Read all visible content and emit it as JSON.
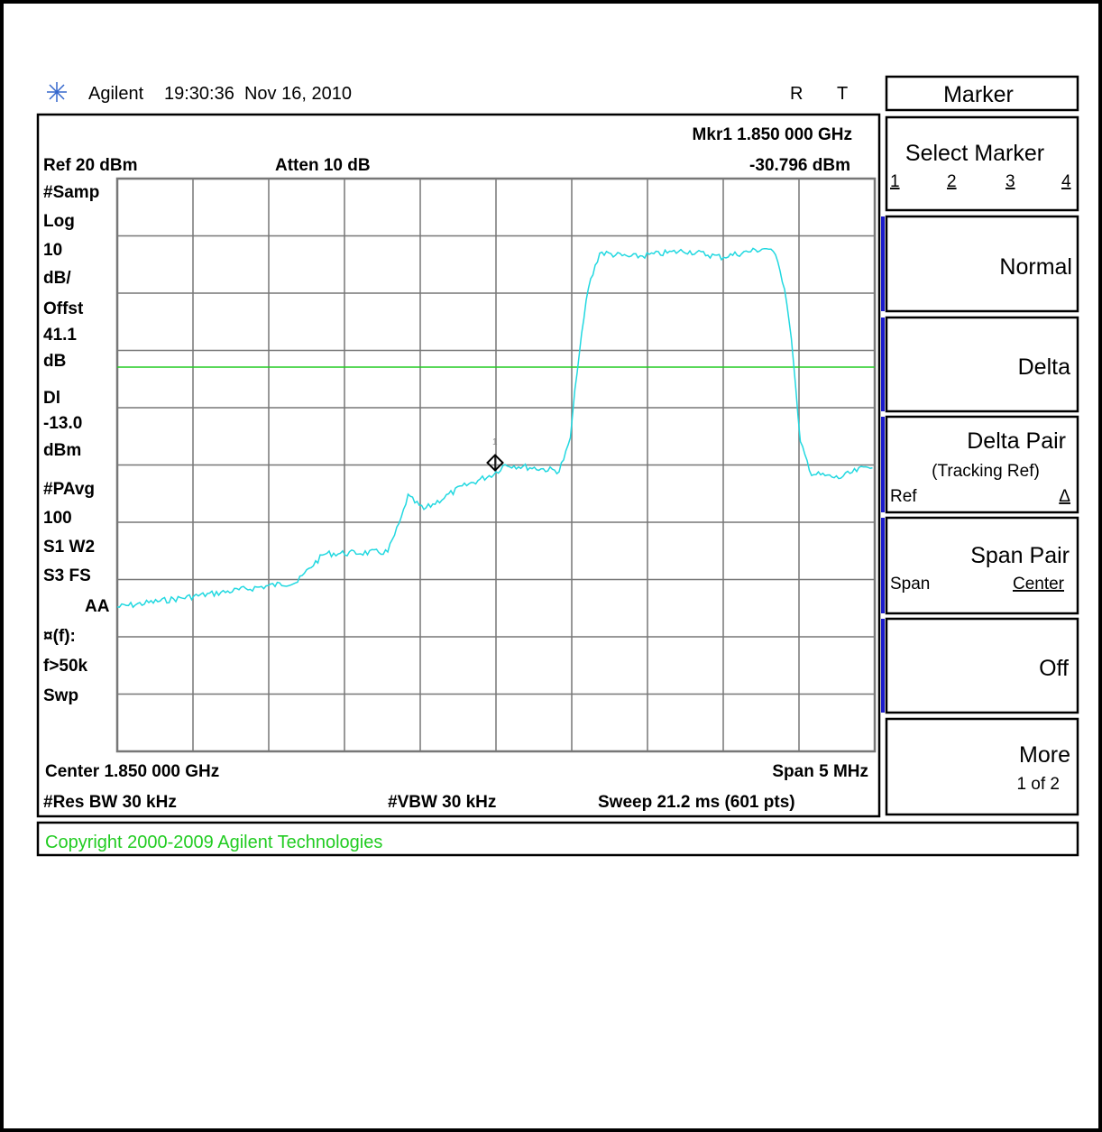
{
  "header": {
    "brand": "Agilent",
    "timestamp": "19:30:36  Nov 16, 2010",
    "flag_r": "R",
    "flag_t": "T"
  },
  "screen": {
    "marker_readout": "Mkr1  1.850 000 GHz",
    "marker_level": "-30.796 dBm",
    "ref_level": "Ref 20 dBm",
    "attenuation": "Atten 10 dB",
    "side_labels": [
      "#Samp",
      "Log",
      "10",
      "dB/",
      "Offst",
      "41.1",
      "dB",
      "Dl",
      "-13.0",
      "dBm",
      "#PAvg",
      "100",
      "S1   W2",
      "S3   FS",
      "AA",
      "¤(f):",
      "f>50k",
      "Swp"
    ],
    "center": "Center 1.850 000 GHz",
    "span": "Span 5 MHz",
    "res_bw": "#Res BW 30 kHz",
    "vbw": "#VBW 30 kHz",
    "sweep": "Sweep 21.2 ms (601 pts)",
    "marker_number": "1"
  },
  "status": "Copyright 2000-2009 Agilent Technologies",
  "menu": {
    "title": "Marker",
    "select_marker": {
      "label": "Select Marker",
      "options": [
        "1",
        "2",
        "3",
        "4"
      ]
    },
    "normal": "Normal",
    "delta": "Delta",
    "delta_pair": {
      "label": "Delta Pair",
      "sub": "(Tracking Ref)",
      "left": "Ref",
      "right": "Δ"
    },
    "span_pair": {
      "label": "Span Pair",
      "left": "Span",
      "right": "Center"
    },
    "off": "Off",
    "more": {
      "label": "More",
      "sub": "1 of 2"
    }
  }
}
